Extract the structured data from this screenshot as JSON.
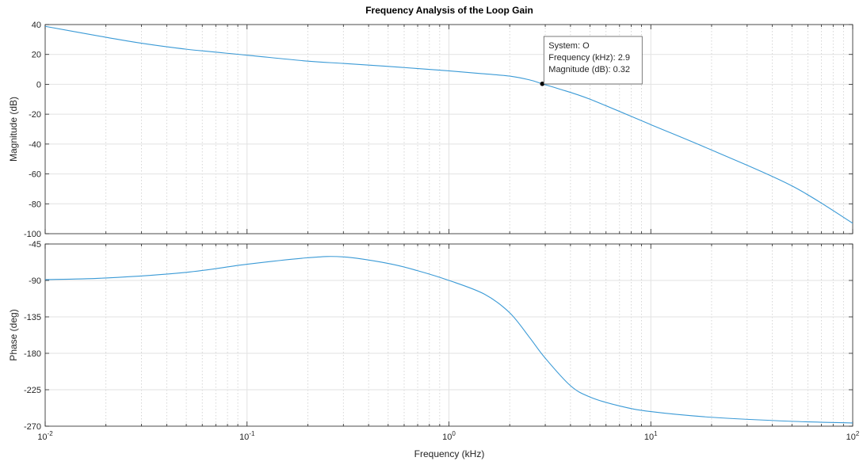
{
  "figure": {
    "title": "Frequency Analysis of the Loop Gain",
    "xlabel": "Frequency  (kHz)"
  },
  "chart_data": [
    {
      "type": "line",
      "name": "magnitude-plot",
      "ylabel": "Magnitude (dB)",
      "xscale": "log",
      "xlim": [
        0.01,
        100
      ],
      "ylim": [
        -100,
        40
      ],
      "yticks": [
        40,
        20,
        0,
        -20,
        -40,
        -60,
        -80,
        -100
      ],
      "xticks": [
        {
          "base": "10",
          "exp": "-2"
        },
        {
          "base": "10",
          "exp": "-1"
        },
        {
          "base": "10",
          "exp": "0"
        },
        {
          "base": "10",
          "exp": "1"
        },
        {
          "base": "10",
          "exp": "2"
        }
      ],
      "grid": true,
      "line_color": "#3a9ad6",
      "series": [
        {
          "x": [
            0.01,
            0.02,
            0.03,
            0.05,
            0.1,
            0.2,
            0.3,
            0.5,
            1,
            1.5,
            2,
            2.5,
            2.9,
            3.5,
            5,
            10,
            20,
            50,
            100
          ],
          "y": [
            38.8,
            31.5,
            27.5,
            23.5,
            19.5,
            15.5,
            14,
            12,
            9,
            7,
            5.5,
            3,
            0.32,
            -3,
            -10,
            -27,
            -44,
            -68,
            -93
          ]
        }
      ],
      "datatip": {
        "x": 2.9,
        "y": 0.32,
        "lines": [
          "System: O",
          "Frequency (kHz): 2.9",
          "Magnitude (dB): 0.32"
        ]
      }
    },
    {
      "type": "line",
      "name": "phase-plot",
      "ylabel": "Phase (deg)",
      "xscale": "log",
      "xlim": [
        0.01,
        100
      ],
      "ylim": [
        -270,
        -45
      ],
      "yticks": [
        -45,
        -90,
        -135,
        -180,
        -225,
        -270
      ],
      "xticks": [
        {
          "base": "10",
          "exp": "-2"
        },
        {
          "base": "10",
          "exp": "-1"
        },
        {
          "base": "10",
          "exp": "0"
        },
        {
          "base": "10",
          "exp": "1"
        },
        {
          "base": "10",
          "exp": "2"
        }
      ],
      "grid": true,
      "line_color": "#3a9ad6",
      "series": [
        {
          "x": [
            0.01,
            0.02,
            0.05,
            0.1,
            0.2,
            0.3,
            0.5,
            0.7,
            1,
            1.5,
            2,
            2.5,
            3,
            4,
            5,
            7,
            10,
            20,
            50,
            100
          ],
          "y": [
            -89,
            -87,
            -80,
            -70,
            -62,
            -61,
            -69,
            -78,
            -90,
            -107,
            -130,
            -160,
            -186,
            -220,
            -234,
            -245,
            -252,
            -259,
            -264,
            -266
          ]
        }
      ]
    }
  ]
}
